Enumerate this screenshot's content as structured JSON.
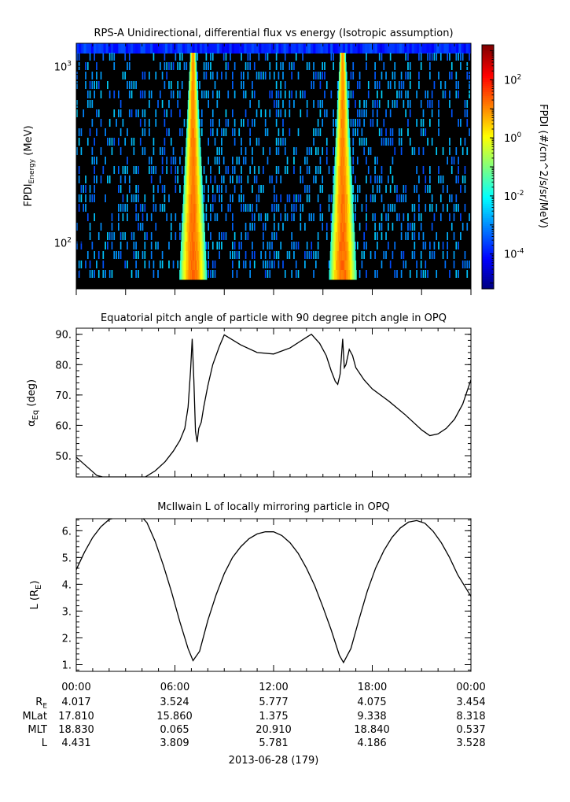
{
  "chart_data": [
    {
      "type": "heatmap",
      "title": "RPS-A Unidirectional, differential flux vs energy (Isotropic assumption)",
      "ylabel_main": "FPDI",
      "ylabel_sub": "Energy",
      "ylabel_unit": "(MeV)",
      "yscale": "log",
      "ylim": [
        55,
        1350
      ],
      "y_ticks": [
        {
          "value": 100,
          "base": "10",
          "exp": "2"
        },
        {
          "value": 1000,
          "base": "10",
          "exp": "3"
        }
      ],
      "xlim": [
        0,
        24
      ],
      "colorbar": {
        "label": "FPDI (#/cm^2/s/sr/MeV)",
        "scale": "log",
        "range": [
          -5.2,
          3.2
        ],
        "ticks": [
          {
            "exp": 2,
            "text": "10",
            "sup": "2"
          },
          {
            "exp": 0,
            "text": "10",
            "sup": "0"
          },
          {
            "exp": -2,
            "text": "10",
            "sup": "-2"
          },
          {
            "exp": -4,
            "text": "10",
            "sup": "-4"
          }
        ],
        "colors": [
          "#00007f",
          "#0000ff",
          "#007fff",
          "#00ffff",
          "#7fff7f",
          "#ffff00",
          "#ff7f00",
          "#ff0000",
          "#7f0000"
        ]
      },
      "features": [
        {
          "center_hours": 7.1,
          "peak_log_flux": 1.3
        },
        {
          "center_hours": 16.2,
          "peak_log_flux": 1.3
        }
      ],
      "background_log_flux": -3.0,
      "top_band_log_flux": -4.3
    },
    {
      "type": "line",
      "title": "Equatorial pitch angle of particle with 90 degree pitch angle in OPQ",
      "ylabel": "α",
      "ylabel_sub": "Eq",
      "ylabel_unit": "(deg)",
      "xlim": [
        0,
        24
      ],
      "ylim": [
        43,
        92
      ],
      "y_ticks": [
        "50.",
        "60.",
        "70.",
        "80.",
        "90."
      ],
      "x": [
        0,
        1.25,
        1.6,
        4.2,
        4.8,
        5.4,
        5.9,
        6.3,
        6.6,
        6.8,
        6.95,
        7.05,
        7.15,
        7.25,
        7.35,
        7.45,
        7.6,
        7.75,
        8.0,
        8.3,
        8.7,
        9.0,
        10.0,
        11.0,
        12.0,
        13.0,
        14.0,
        14.3,
        14.8,
        15.2,
        15.5,
        15.75,
        15.9,
        16.05,
        16.2,
        16.3,
        16.4,
        16.6,
        16.8,
        17.0,
        17.5,
        18.0,
        19.0,
        20.0,
        20.5,
        21.0,
        21.5,
        22.0,
        22.5,
        23.0,
        23.5,
        24.0
      ],
      "y": [
        49.5,
        43.5,
        43,
        43,
        45,
        48,
        51.5,
        55,
        59,
        66,
        78,
        88.5,
        75,
        58,
        54.5,
        59,
        61,
        66,
        73,
        80,
        86,
        89.8,
        86.5,
        84,
        83.5,
        85.5,
        89,
        90,
        87,
        83,
        78,
        74.5,
        73.5,
        77,
        88.5,
        79,
        80,
        85,
        83,
        79,
        75,
        72,
        68,
        63.5,
        61,
        58.5,
        56.6,
        57.2,
        59,
        62,
        67,
        75
      ]
    },
    {
      "type": "line",
      "title": "McIlwain L of locally mirroring particle in OPQ",
      "ylabel": "L (R",
      "ylabel_sub": "E",
      "ylabel_unit": ")",
      "xlim": [
        0,
        24
      ],
      "ylim": [
        0.75,
        6.45
      ],
      "y_ticks": [
        "1.",
        "2.",
        "3.",
        "4.",
        "5.",
        "6."
      ],
      "x": [
        0,
        0.5,
        1.0,
        1.5,
        2.0,
        2.5,
        3.0,
        3.5,
        4.0,
        4.3,
        4.8,
        5.3,
        5.8,
        6.3,
        6.8,
        7.1,
        7.5,
        8.0,
        8.5,
        9.0,
        9.5,
        10.0,
        10.5,
        11.0,
        11.5,
        12.0,
        12.5,
        13.0,
        13.5,
        14.0,
        14.5,
        15.0,
        15.5,
        16.0,
        16.25,
        16.7,
        17.2,
        17.7,
        18.2,
        18.7,
        19.2,
        19.7,
        20.2,
        20.7,
        21.2,
        21.7,
        22.2,
        22.7,
        23.2,
        23.6,
        24.0
      ],
      "y": [
        4.55,
        5.2,
        5.75,
        6.15,
        6.42,
        6.5,
        6.5,
        6.5,
        6.5,
        6.3,
        5.6,
        4.7,
        3.7,
        2.6,
        1.6,
        1.15,
        1.5,
        2.65,
        3.6,
        4.4,
        5.0,
        5.4,
        5.7,
        5.88,
        5.96,
        5.96,
        5.82,
        5.55,
        5.15,
        4.6,
        3.95,
        3.15,
        2.3,
        1.35,
        1.08,
        1.6,
        2.7,
        3.75,
        4.6,
        5.25,
        5.75,
        6.1,
        6.32,
        6.38,
        6.28,
        5.98,
        5.55,
        5.0,
        4.35,
        3.95,
        3.55
      ]
    }
  ],
  "time_axis": {
    "ticks": [
      "00:00",
      "06:00",
      "12:00",
      "18:00",
      "00:00"
    ],
    "tick_hours": [
      0,
      6,
      12,
      18,
      24
    ],
    "date_label": "2013-06-28 (179)"
  },
  "ephemeris": {
    "labels": [
      {
        "text": "R",
        "sub": "E"
      },
      {
        "text": "MLat",
        "sub": ""
      },
      {
        "text": "MLT",
        "sub": ""
      },
      {
        "text": "L",
        "sub": ""
      }
    ],
    "columns": [
      [
        "4.017",
        "17.810",
        "18.830",
        "4.431"
      ],
      [
        "3.524",
        "15.860",
        "0.065",
        "3.809"
      ],
      [
        "5.777",
        "1.375",
        "20.910",
        "5.781"
      ],
      [
        "4.075",
        "9.338",
        "18.840",
        "4.186"
      ],
      [
        "3.454",
        "8.318",
        "0.537",
        "3.528"
      ]
    ]
  }
}
